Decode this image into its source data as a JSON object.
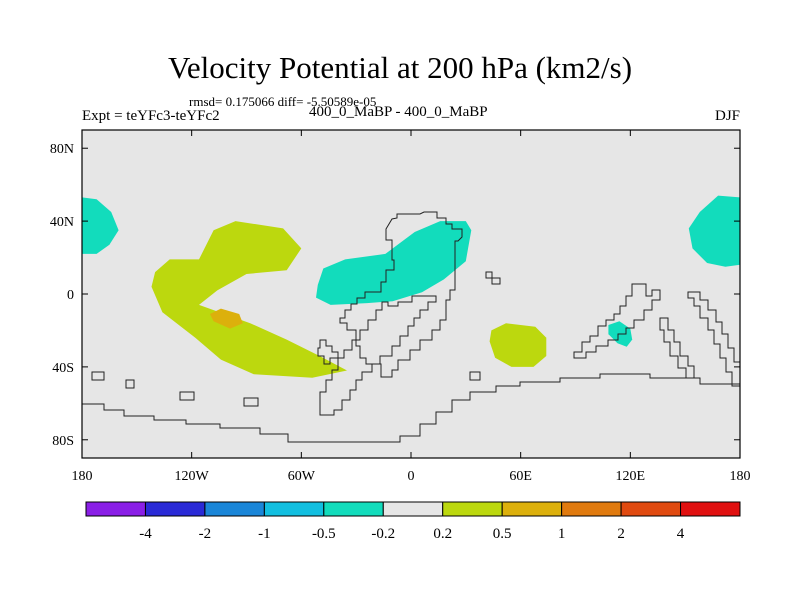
{
  "chart_data": {
    "type": "map",
    "title": "Velocity Potential at 200 hPa (km2/s)",
    "stats_line": "rmsd= 0.175066 diff= -5.50589e-05",
    "experiment_label": "Expt = teYFc3-teYFc2",
    "experiment_names": "400_0_MaBP - 400_0_MaBP",
    "season": "DJF",
    "lon_range": [
      -180,
      180
    ],
    "lat_range": [
      -90,
      90
    ],
    "x_ticks": [
      {
        "value": -180,
        "label": "180"
      },
      {
        "value": -120,
        "label": "120W"
      },
      {
        "value": -60,
        "label": "60W"
      },
      {
        "value": 0,
        "label": "0"
      },
      {
        "value": 60,
        "label": "60E"
      },
      {
        "value": 120,
        "label": "120E"
      },
      {
        "value": 180,
        "label": "180"
      }
    ],
    "y_ticks": [
      {
        "value": 80,
        "label": "80N"
      },
      {
        "value": 40,
        "label": "40N"
      },
      {
        "value": 0,
        "label": "0"
      },
      {
        "value": -40,
        "label": "40S"
      },
      {
        "value": -80,
        "label": "80S"
      }
    ],
    "colorbar": {
      "levels": [
        "-4",
        "-2",
        "-1",
        "-0.5",
        "-0.2",
        "0.2",
        "0.5",
        "1",
        "2",
        "4"
      ],
      "colors": [
        "#8a1fe6",
        "#2a2ad6",
        "#1a86d8",
        "#12bfe0",
        "#12dcbc",
        "#e6e6e6",
        "#bcd80e",
        "#dcb00c",
        "#e07a0e",
        "#e04a10",
        "#e01010"
      ]
    },
    "regions": [
      {
        "name": "Central Pacific low (West)",
        "level": "-0.5 to -0.2",
        "color": "#12dcbc",
        "points": [
          [
            -180,
            53
          ],
          [
            -172,
            52
          ],
          [
            -164,
            45
          ],
          [
            -160,
            35
          ],
          [
            -165,
            27
          ],
          [
            -172,
            22
          ],
          [
            -180,
            22
          ]
        ]
      },
      {
        "name": "Central Pacific low (East)",
        "level": "-0.5 to -0.2",
        "color": "#12dcbc",
        "points": [
          [
            180,
            53
          ],
          [
            168,
            54
          ],
          [
            158,
            45
          ],
          [
            152,
            36
          ],
          [
            154,
            25
          ],
          [
            162,
            17
          ],
          [
            172,
            15
          ],
          [
            180,
            16
          ]
        ]
      },
      {
        "name": "Atlantic-Africa low",
        "level": "-0.5 to -0.2",
        "color": "#12dcbc",
        "points": [
          [
            -51,
            5
          ],
          [
            -48,
            14
          ],
          [
            -36,
            19
          ],
          [
            -14,
            22
          ],
          [
            2,
            34
          ],
          [
            16,
            40
          ],
          [
            30,
            40
          ],
          [
            33,
            35
          ],
          [
            30,
            18
          ],
          [
            18,
            8
          ],
          [
            6,
            1
          ],
          [
            -10,
            -4
          ],
          [
            -24,
            -5
          ],
          [
            -44,
            -6
          ],
          [
            -52,
            -2
          ]
        ]
      },
      {
        "name": "Indian Ocean low",
        "level": "-0.5 to -0.2",
        "color": "#12dcbc",
        "points": [
          [
            108,
            -17
          ],
          [
            114,
            -15
          ],
          [
            120,
            -19
          ],
          [
            121,
            -25
          ],
          [
            118,
            -29
          ],
          [
            113,
            -27
          ],
          [
            108,
            -22
          ]
        ]
      },
      {
        "name": "Western hemisphere high",
        "level": "0.2 to 0.5",
        "color": "#bcd80e",
        "points": [
          [
            -142,
            4
          ],
          [
            -140,
            12
          ],
          [
            -132,
            19
          ],
          [
            -116,
            19
          ],
          [
            -108,
            35
          ],
          [
            -96,
            40
          ],
          [
            -70,
            36
          ],
          [
            -60,
            25
          ],
          [
            -68,
            13
          ],
          [
            -90,
            11
          ],
          [
            -106,
            2
          ],
          [
            -116,
            -6
          ],
          [
            -88,
            -16
          ],
          [
            -68,
            -25
          ],
          [
            -50,
            -34
          ],
          [
            -35,
            -42
          ],
          [
            -54,
            -46
          ],
          [
            -86,
            -44
          ],
          [
            -104,
            -36
          ],
          [
            -118,
            -24
          ],
          [
            -136,
            -10
          ]
        ]
      },
      {
        "name": "South Atlantic high",
        "level": "0.2 to 0.5",
        "color": "#bcd80e",
        "points": [
          [
            44,
            -20
          ],
          [
            52,
            -16
          ],
          [
            68,
            -18
          ],
          [
            74,
            -24
          ],
          [
            74,
            -34
          ],
          [
            67,
            -40
          ],
          [
            55,
            -40
          ],
          [
            46,
            -35
          ],
          [
            43,
            -26
          ]
        ]
      },
      {
        "name": "Tropical Pacific high core",
        "level": "0.5 to 1",
        "color": "#dcb00c",
        "points": [
          [
            -110,
            -11
          ],
          [
            -104,
            -8
          ],
          [
            -94,
            -11
          ],
          [
            -92,
            -16
          ],
          [
            -99,
            -19
          ],
          [
            -108,
            -15
          ]
        ]
      }
    ]
  }
}
